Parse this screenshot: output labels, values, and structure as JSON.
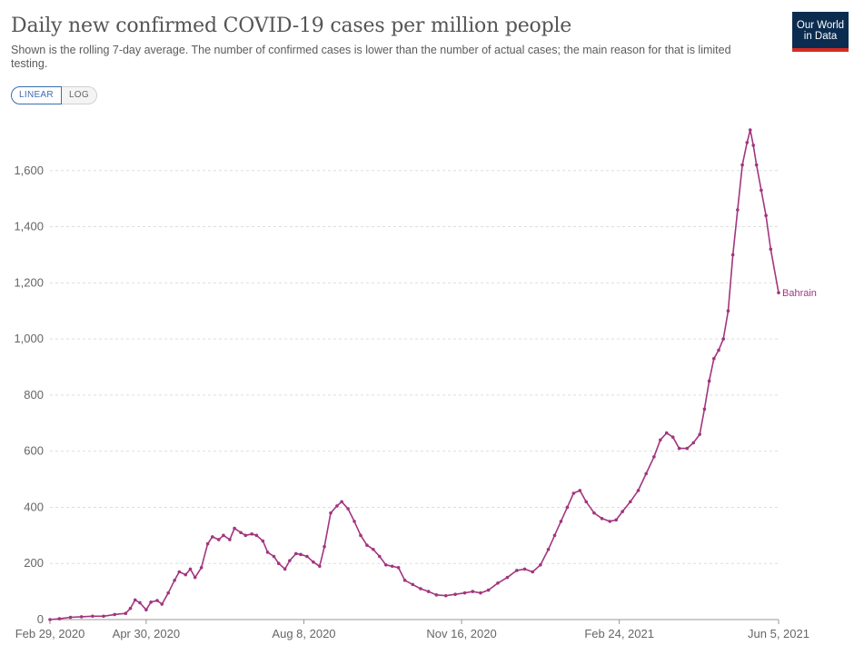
{
  "header": {
    "title": "Daily new confirmed COVID-19 cases per million people",
    "subtitle": "Shown is the rolling 7-day average. The number of confirmed cases is lower than the number of actual cases; the main reason for that is limited testing."
  },
  "logo": {
    "line1": "Our World",
    "line2": "in Data"
  },
  "scale_toggle": {
    "linear_label": "LINEAR",
    "log_label": "LOG",
    "selected": "LINEAR"
  },
  "colors": {
    "series": "#a2357f",
    "logo_bg": "#0b2c4f",
    "logo_accent": "#d42b21",
    "grid": "#dddddd"
  },
  "chart_data": {
    "type": "line",
    "title": "Daily new confirmed COVID-19 cases per million people",
    "xlabel": "",
    "ylabel": "",
    "x_axis": "date",
    "xlim": [
      "2020-02-29",
      "2021-06-05"
    ],
    "ylim": [
      0,
      1800
    ],
    "y_ticks": [
      0,
      200,
      400,
      600,
      800,
      1000,
      1200,
      1400,
      1600
    ],
    "y_tick_labels": [
      "0",
      "200",
      "400",
      "600",
      "800",
      "1,000",
      "1,200",
      "1,400",
      "1,600"
    ],
    "x_ticks": [
      "2020-02-29",
      "2020-04-30",
      "2020-08-08",
      "2020-11-16",
      "2021-02-24",
      "2021-06-05"
    ],
    "x_tick_labels": [
      "Feb 29, 2020",
      "Apr 30, 2020",
      "Aug 8, 2020",
      "Nov 16, 2020",
      "Feb 24, 2021",
      "Jun 5, 2021"
    ],
    "grid": "horizontal dashed",
    "series": [
      {
        "name": "Bahrain",
        "points": [
          [
            "2020-02-29",
            0
          ],
          [
            "2020-03-06",
            3
          ],
          [
            "2020-03-13",
            8
          ],
          [
            "2020-03-20",
            10
          ],
          [
            "2020-03-27",
            12
          ],
          [
            "2020-04-03",
            12
          ],
          [
            "2020-04-10",
            18
          ],
          [
            "2020-04-17",
            22
          ],
          [
            "2020-04-20",
            40
          ],
          [
            "2020-04-23",
            70
          ],
          [
            "2020-04-26",
            60
          ],
          [
            "2020-04-30",
            35
          ],
          [
            "2020-05-03",
            62
          ],
          [
            "2020-05-07",
            68
          ],
          [
            "2020-05-10",
            55
          ],
          [
            "2020-05-14",
            95
          ],
          [
            "2020-05-18",
            140
          ],
          [
            "2020-05-21",
            170
          ],
          [
            "2020-05-25",
            160
          ],
          [
            "2020-05-28",
            180
          ],
          [
            "2020-05-31",
            150
          ],
          [
            "2020-06-04",
            185
          ],
          [
            "2020-06-08",
            270
          ],
          [
            "2020-06-11",
            295
          ],
          [
            "2020-06-15",
            285
          ],
          [
            "2020-06-18",
            300
          ],
          [
            "2020-06-22",
            285
          ],
          [
            "2020-06-25",
            325
          ],
          [
            "2020-06-29",
            310
          ],
          [
            "2020-07-02",
            300
          ],
          [
            "2020-07-06",
            305
          ],
          [
            "2020-07-09",
            300
          ],
          [
            "2020-07-13",
            280
          ],
          [
            "2020-07-16",
            240
          ],
          [
            "2020-07-20",
            225
          ],
          [
            "2020-07-23",
            200
          ],
          [
            "2020-07-27",
            180
          ],
          [
            "2020-07-30",
            210
          ],
          [
            "2020-08-03",
            235
          ],
          [
            "2020-08-06",
            232
          ],
          [
            "2020-08-10",
            225
          ],
          [
            "2020-08-14",
            205
          ],
          [
            "2020-08-18",
            190
          ],
          [
            "2020-08-21",
            260
          ],
          [
            "2020-08-25",
            380
          ],
          [
            "2020-08-29",
            405
          ],
          [
            "2020-09-01",
            420
          ],
          [
            "2020-09-05",
            395
          ],
          [
            "2020-09-09",
            350
          ],
          [
            "2020-09-13",
            300
          ],
          [
            "2020-09-17",
            265
          ],
          [
            "2020-09-21",
            250
          ],
          [
            "2020-09-25",
            225
          ],
          [
            "2020-09-29",
            195
          ],
          [
            "2020-10-03",
            190
          ],
          [
            "2020-10-07",
            185
          ],
          [
            "2020-10-11",
            140
          ],
          [
            "2020-10-16",
            125
          ],
          [
            "2020-10-21",
            110
          ],
          [
            "2020-10-26",
            100
          ],
          [
            "2020-10-31",
            88
          ],
          [
            "2020-11-06",
            85
          ],
          [
            "2020-11-12",
            90
          ],
          [
            "2020-11-18",
            95
          ],
          [
            "2020-11-23",
            100
          ],
          [
            "2020-11-28",
            95
          ],
          [
            "2020-12-03",
            105
          ],
          [
            "2020-12-09",
            130
          ],
          [
            "2020-12-15",
            150
          ],
          [
            "2020-12-21",
            175
          ],
          [
            "2020-12-26",
            180
          ],
          [
            "2020-12-31",
            170
          ],
          [
            "2021-01-05",
            195
          ],
          [
            "2021-01-10",
            250
          ],
          [
            "2021-01-14",
            300
          ],
          [
            "2021-01-18",
            350
          ],
          [
            "2021-01-22",
            400
          ],
          [
            "2021-01-26",
            450
          ],
          [
            "2021-01-30",
            460
          ],
          [
            "2021-02-03",
            420
          ],
          [
            "2021-02-08",
            380
          ],
          [
            "2021-02-13",
            360
          ],
          [
            "2021-02-18",
            350
          ],
          [
            "2021-02-22",
            355
          ],
          [
            "2021-02-26",
            385
          ],
          [
            "2021-03-03",
            420
          ],
          [
            "2021-03-08",
            460
          ],
          [
            "2021-03-13",
            520
          ],
          [
            "2021-03-18",
            580
          ],
          [
            "2021-03-22",
            640
          ],
          [
            "2021-03-26",
            665
          ],
          [
            "2021-03-30",
            650
          ],
          [
            "2021-04-03",
            610
          ],
          [
            "2021-04-08",
            610
          ],
          [
            "2021-04-12",
            630
          ],
          [
            "2021-04-16",
            660
          ],
          [
            "2021-04-19",
            750
          ],
          [
            "2021-04-22",
            850
          ],
          [
            "2021-04-25",
            930
          ],
          [
            "2021-04-28",
            960
          ],
          [
            "2021-05-01",
            1000
          ],
          [
            "2021-05-04",
            1100
          ],
          [
            "2021-05-07",
            1300
          ],
          [
            "2021-05-10",
            1460
          ],
          [
            "2021-05-13",
            1620
          ],
          [
            "2021-05-16",
            1700
          ],
          [
            "2021-05-18",
            1745
          ],
          [
            "2021-05-20",
            1690
          ],
          [
            "2021-05-22",
            1620
          ],
          [
            "2021-05-25",
            1530
          ],
          [
            "2021-05-28",
            1440
          ],
          [
            "2021-05-31",
            1320
          ],
          [
            "2021-06-05",
            1165
          ]
        ]
      }
    ]
  }
}
